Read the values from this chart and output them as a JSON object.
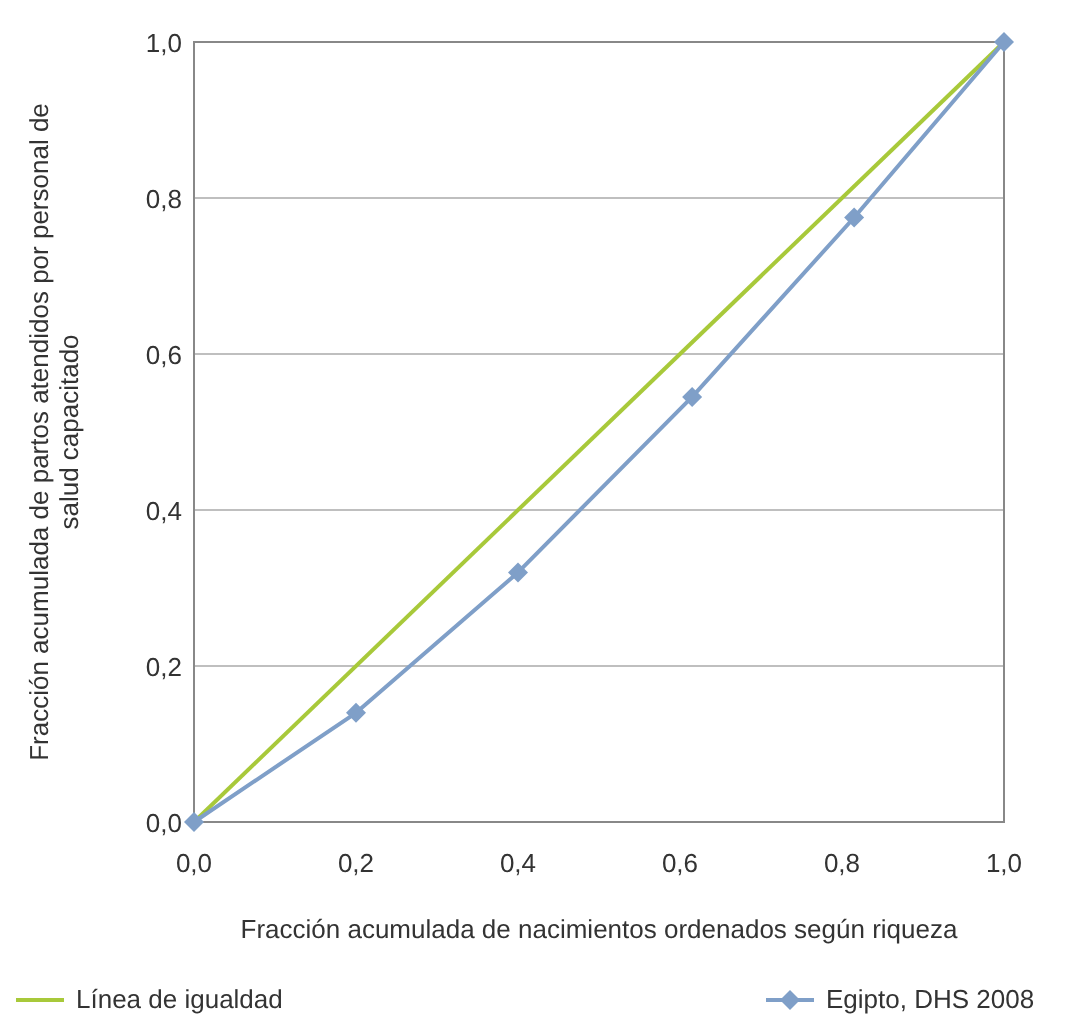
{
  "chart_data": {
    "type": "line",
    "xlabel": "Fracción acumulada de nacimientos ordenados según riqueza",
    "ylabel": "Fracción acumulada de partos atendidos por personal de salud capacitado",
    "xlim": [
      0,
      1
    ],
    "ylim": [
      0,
      1
    ],
    "xticks": [
      {
        "value": 0,
        "label": "0,0"
      },
      {
        "value": 0.2,
        "label": "0,2"
      },
      {
        "value": 0.4,
        "label": "0,4"
      },
      {
        "value": 0.6,
        "label": "0,6"
      },
      {
        "value": 0.8,
        "label": "0,8"
      },
      {
        "value": 1,
        "label": "1,0"
      }
    ],
    "yticks": [
      {
        "value": 0,
        "label": "0,0"
      },
      {
        "value": 0.2,
        "label": "0,2"
      },
      {
        "value": 0.4,
        "label": "0,4"
      },
      {
        "value": 0.6,
        "label": "0,6"
      },
      {
        "value": 0.8,
        "label": "0,8"
      },
      {
        "value": 1,
        "label": "1,0"
      }
    ],
    "grid": "y",
    "legend": "bottom",
    "series": [
      {
        "name": "Línea de igualdad",
        "color": "#a8c93a",
        "x": [
          0,
          1
        ],
        "values": [
          0,
          1
        ],
        "marker": "none"
      },
      {
        "name": "Egipto, DHS 2008",
        "color": "#7f9fc8",
        "x": [
          0,
          0.2,
          0.4,
          0.615,
          0.815,
          1
        ],
        "values": [
          0,
          0.14,
          0.32,
          0.545,
          0.775,
          1
        ],
        "marker": "diamond"
      }
    ]
  }
}
